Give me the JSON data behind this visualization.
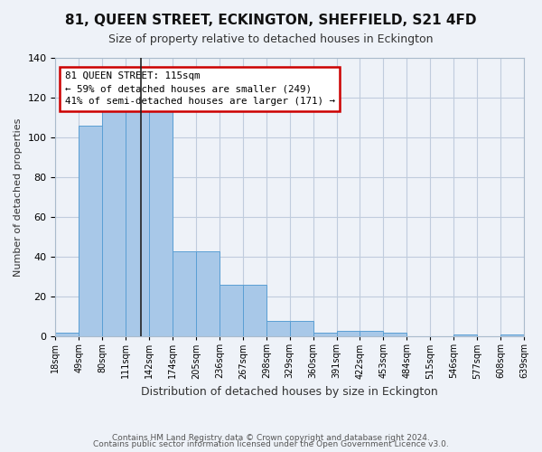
{
  "title": "81, QUEEN STREET, ECKINGTON, SHEFFIELD, S21 4FD",
  "subtitle": "Size of property relative to detached houses in Eckington",
  "xlabel": "Distribution of detached houses by size in Eckington",
  "ylabel": "Number of detached properties",
  "bin_labels": [
    "18sqm",
    "49sqm",
    "80sqm",
    "111sqm",
    "142sqm",
    "174sqm",
    "205sqm",
    "236sqm",
    "267sqm",
    "298sqm",
    "329sqm",
    "360sqm",
    "391sqm",
    "422sqm",
    "453sqm",
    "484sqm",
    "515sqm",
    "546sqm",
    "577sqm",
    "608sqm",
    "639sqm"
  ],
  "bar_values": [
    2,
    106,
    116,
    113,
    113,
    43,
    43,
    26,
    26,
    8,
    8,
    2,
    3,
    3,
    2,
    0,
    0,
    1,
    0,
    1
  ],
  "bar_color": "#a8c8e8",
  "bar_edge_color": "#5a9fd4",
  "grid_color": "#c0ccdd",
  "background_color": "#eef2f8",
  "annotation_text": "81 QUEEN STREET: 115sqm\n← 59% of detached houses are smaller (249)\n41% of semi-detached houses are larger (171) →",
  "annotation_box_color": "#ffffff",
  "annotation_box_edge": "#cc0000",
  "footer1": "Contains HM Land Registry data © Crown copyright and database right 2024.",
  "footer2": "Contains public sector information licensed under the Open Government Licence v3.0.",
  "ylim": [
    0,
    140
  ],
  "yticks": [
    0,
    20,
    40,
    60,
    80,
    100,
    120,
    140
  ]
}
